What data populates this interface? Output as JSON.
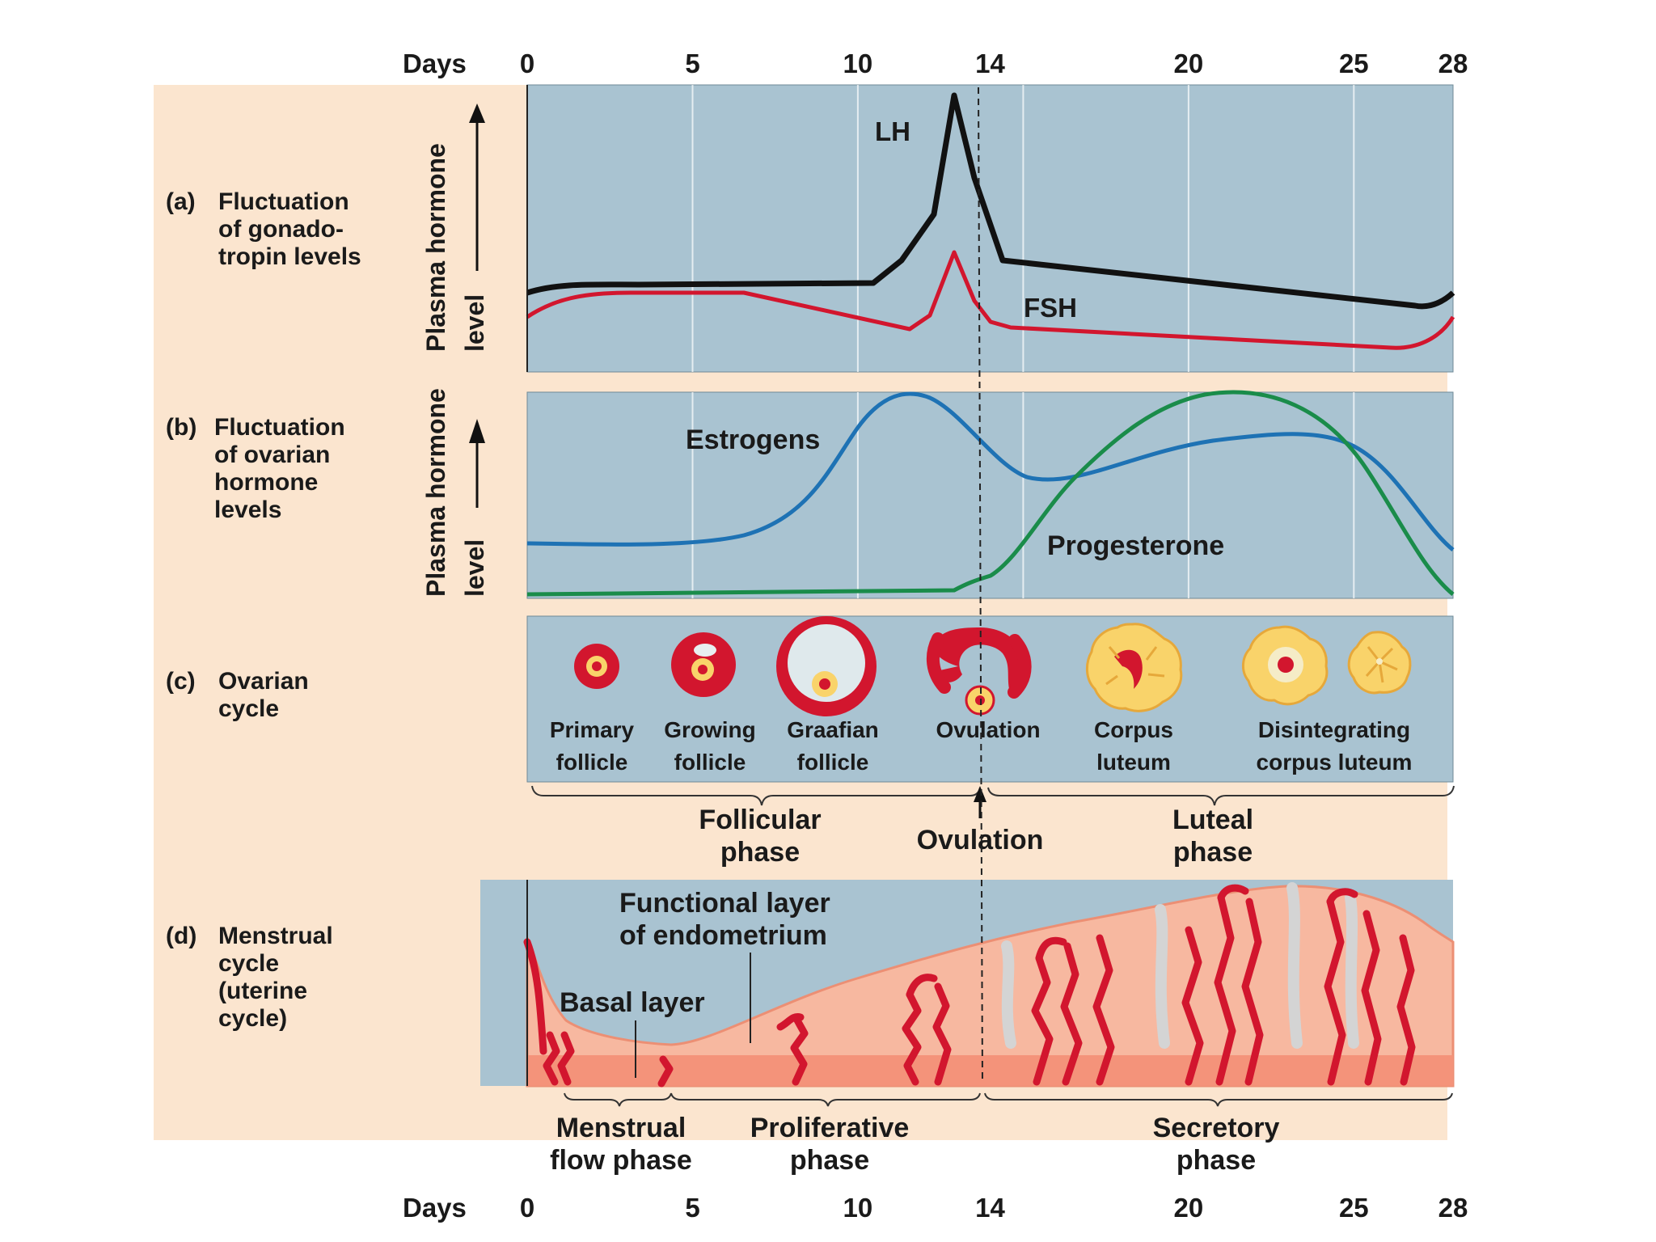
{
  "axis": {
    "label": "Days",
    "ticks": [
      "0",
      "5",
      "10",
      "14",
      "20",
      "25",
      "28"
    ],
    "tick_days": [
      0,
      5,
      10,
      14,
      20,
      25,
      28
    ]
  },
  "panel_a": {
    "title_lines": [
      "(a)",
      "Fluctuation",
      "of gonado-",
      "tropin levels"
    ],
    "ylabel_lines": [
      "Plasma hormone",
      "level"
    ],
    "lh_label": "LH",
    "fsh_label": "FSH",
    "lh_color": "#111111",
    "fsh_color": "#d2162e"
  },
  "panel_b": {
    "title_lines": [
      "(b)",
      "Fluctuation",
      "of ovarian",
      "hormone",
      "levels"
    ],
    "ylabel_lines": [
      "Plasma hormone",
      "level"
    ],
    "estrogens_label": "Estrogens",
    "progesterone_label": "Progesterone",
    "estrogens_color": "#1e72b4",
    "progesterone_color": "#1a8c4a"
  },
  "panel_c": {
    "title_lines": [
      "(c)",
      "Ovarian",
      "cycle"
    ],
    "stages": [
      {
        "line1": "Primary",
        "line2": "follicle"
      },
      {
        "line1": "Growing",
        "line2": "follicle"
      },
      {
        "line1": "Graafian",
        "line2": "follicle"
      },
      {
        "line1": "Ovulation",
        "line2": ""
      },
      {
        "line1": "Corpus",
        "line2": "luteum"
      },
      {
        "line1": "Disintegrating",
        "line2": "corpus luteum"
      }
    ],
    "phases": {
      "follicular": [
        "Follicular",
        "phase"
      ],
      "ovulation": "Ovulation",
      "luteal": [
        "Luteal",
        "phase"
      ]
    }
  },
  "panel_d": {
    "title_lines": [
      "(d)",
      "Menstrual",
      "cycle",
      "(uterine",
      "cycle)"
    ],
    "functional_layer": [
      "Functional layer",
      "of endometrium"
    ],
    "basal_layer": "Basal layer",
    "phases": {
      "menstrual": [
        "Menstrual",
        "flow phase"
      ],
      "proliferative": [
        "Proliferative",
        "phase"
      ],
      "secretory": [
        "Secretory",
        "phase"
      ]
    }
  },
  "colors": {
    "background_band": "#fbe5cf",
    "panel_fill": "#a9c3d1",
    "endometrium": "#f7b8a0",
    "basal": "#f4937a",
    "vessel": "#d2162e"
  }
}
